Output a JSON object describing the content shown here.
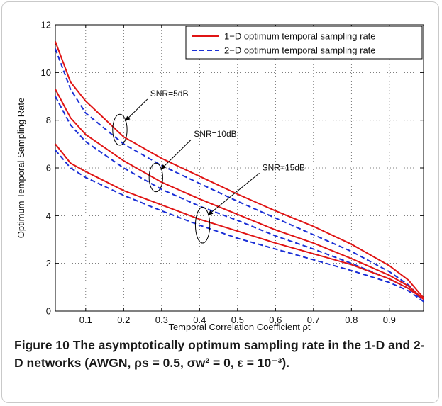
{
  "caption": {
    "label": "Figure 10",
    "text": "The asymptotically optimum sampling rate in the 1-D and 2-D networks (AWGN, ρs = 0.5, σw² = 0, ε = 10⁻³)."
  },
  "chart_data": {
    "type": "line",
    "title": "",
    "xlabel": "Temporal Correlation Coefficient ρt",
    "ylabel": "Optimum Temporal Sampling Rate",
    "xlim": [
      0.02,
      0.99
    ],
    "ylim": [
      0,
      12
    ],
    "xticks": [
      0.1,
      0.2,
      0.3,
      0.4,
      0.5,
      0.6,
      0.7,
      0.8,
      0.9
    ],
    "yticks": [
      0,
      2,
      4,
      6,
      8,
      10,
      12
    ],
    "grid": true,
    "legend_position": "top-right",
    "colors": {
      "one_d": "#e01414",
      "two_d": "#1a2fd6"
    },
    "legend": [
      {
        "label": "1−D optimum temporal sampling rate",
        "style": "solid",
        "color": "#e01414"
      },
      {
        "label": "2−D optimum temporal sampling rate",
        "style": "dashed",
        "color": "#1a2fd6"
      }
    ],
    "x": [
      0.02,
      0.06,
      0.1,
      0.2,
      0.3,
      0.4,
      0.5,
      0.6,
      0.7,
      0.8,
      0.9,
      0.95,
      0.99
    ],
    "series": [
      {
        "name": "1−D optimum temporal sampling rate",
        "snr": "SNR=5dB",
        "dashed": false,
        "values": [
          11.3,
          9.6,
          8.8,
          7.3,
          6.4,
          5.65,
          4.9,
          4.2,
          3.55,
          2.8,
          1.9,
          1.3,
          0.55
        ]
      },
      {
        "name": "2−D optimum temporal sampling rate",
        "snr": "SNR=5dB",
        "dashed": true,
        "values": [
          11.0,
          9.3,
          8.3,
          7.0,
          6.1,
          5.35,
          4.6,
          3.9,
          3.2,
          2.5,
          1.65,
          1.1,
          0.45
        ]
      },
      {
        "name": "1−D optimum temporal sampling rate",
        "snr": "SNR=10dB",
        "dashed": false,
        "values": [
          9.3,
          8.1,
          7.4,
          6.3,
          5.4,
          4.7,
          4.05,
          3.4,
          2.85,
          2.2,
          1.5,
          1.05,
          0.5
        ]
      },
      {
        "name": "2−D optimum temporal sampling rate",
        "snr": "SNR=10dB",
        "dashed": true,
        "values": [
          9.0,
          7.8,
          7.1,
          6.0,
          5.1,
          4.4,
          3.8,
          3.15,
          2.6,
          2.0,
          1.35,
          0.95,
          0.45
        ]
      },
      {
        "name": "1−D optimum temporal sampling rate",
        "snr": "SNR=15dB",
        "dashed": false,
        "values": [
          7.0,
          6.2,
          5.85,
          5.05,
          4.45,
          3.85,
          3.35,
          2.85,
          2.4,
          1.95,
          1.35,
          0.95,
          0.5
        ]
      },
      {
        "name": "2−D optimum temporal sampling rate",
        "snr": "SNR=15dB",
        "dashed": true,
        "values": [
          6.75,
          6.0,
          5.6,
          4.85,
          4.2,
          3.6,
          3.05,
          2.6,
          2.15,
          1.7,
          1.2,
          0.85,
          0.4
        ]
      }
    ],
    "annotations": [
      {
        "text": "SNR=5dB",
        "ellipse_center": [
          0.19,
          7.6
        ],
        "ellipse_radii": [
          0.019,
          0.65
        ],
        "label_at": [
          0.27,
          9.0
        ]
      },
      {
        "text": "SNR=10dB",
        "ellipse_center": [
          0.285,
          5.6
        ],
        "ellipse_radii": [
          0.018,
          0.6
        ],
        "label_at": [
          0.385,
          7.3
        ]
      },
      {
        "text": "SNR=15dB",
        "ellipse_center": [
          0.408,
          3.6
        ],
        "ellipse_radii": [
          0.019,
          0.75
        ],
        "label_at": [
          0.565,
          5.9
        ]
      }
    ]
  }
}
